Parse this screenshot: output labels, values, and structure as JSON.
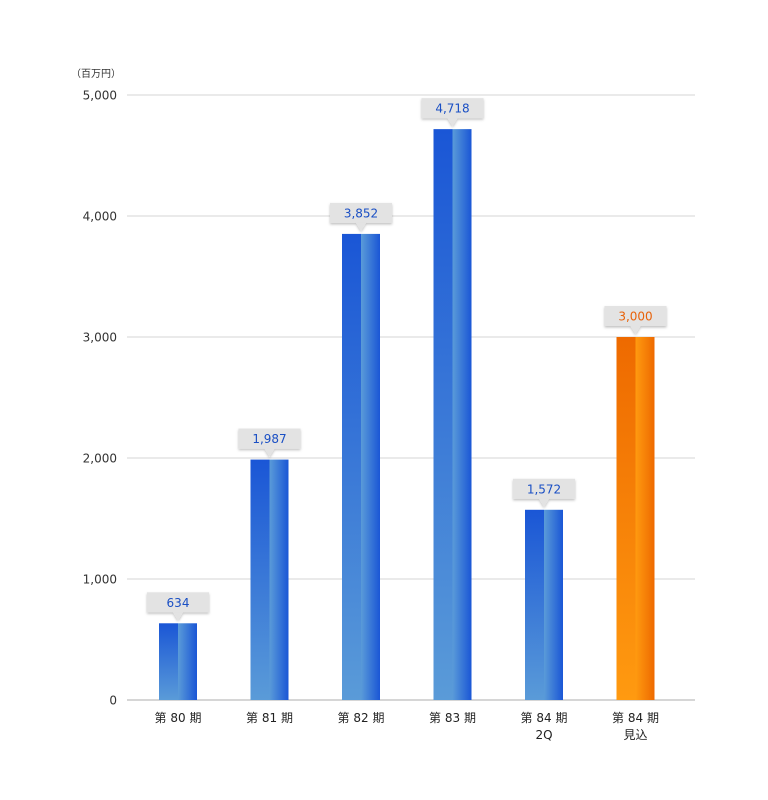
{
  "chart_data": {
    "type": "bar",
    "unit_label": "（百万円）",
    "categories": [
      [
        "第 80 期"
      ],
      [
        "第 81 期"
      ],
      [
        "第 82 期"
      ],
      [
        "第 83 期"
      ],
      [
        "第 84 期",
        "2Q"
      ],
      [
        "第 84 期",
        "見込"
      ]
    ],
    "values": [
      634,
      1987,
      3852,
      4718,
      1572,
      3000
    ],
    "value_labels": [
      "634",
      "1,987",
      "3,852",
      "4,718",
      "1,572",
      "3,000"
    ],
    "bar_colors": [
      "blue",
      "blue",
      "blue",
      "blue",
      "blue",
      "orange"
    ],
    "ylim": [
      0,
      5000
    ],
    "yticks": [
      0,
      1000,
      2000,
      3000,
      4000,
      5000
    ],
    "ytick_labels": [
      "0",
      "1,000",
      "2,000",
      "3,000",
      "4,000",
      "5,000"
    ],
    "grid": true,
    "colors": {
      "blue_dark": "#1a56d6",
      "blue_light": "#5a9bd8",
      "orange_dark": "#ee6a00",
      "orange_light": "#ff9a10",
      "label_blue": "#1a4fc4",
      "label_orange": "#e8620a",
      "callout_bg": "#e3e3e3",
      "grid": "#d6d6d6",
      "axis": "#bdbdbd"
    }
  }
}
